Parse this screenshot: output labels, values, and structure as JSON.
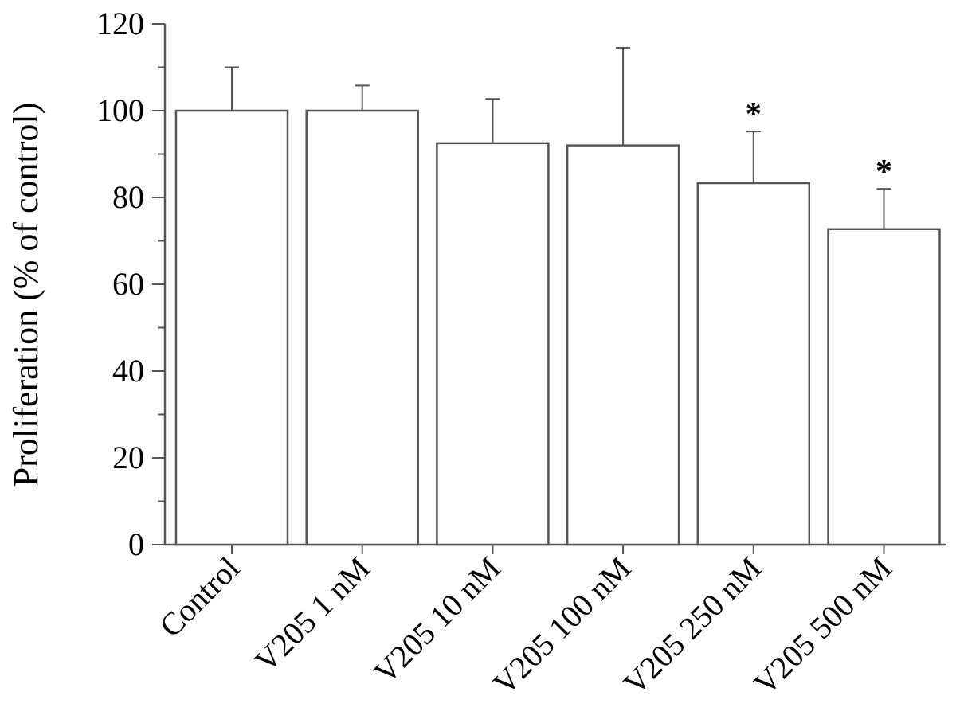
{
  "chart_data": {
    "type": "bar",
    "title": "",
    "xlabel": "",
    "ylabel": "Proliferation (% of control)",
    "ylim": [
      0,
      120
    ],
    "yticks": [
      0,
      20,
      40,
      60,
      80,
      100,
      120
    ],
    "yticks_labels": [
      "0",
      "20",
      "40",
      "60",
      "80",
      "100",
      "120"
    ],
    "minor_tick_step": 10,
    "grid": false,
    "legend": "none",
    "categories": [
      "Control",
      "V205 1 nM",
      "V205 10 nM",
      "V205 100 nM",
      "V205 250 nM",
      "V205 500 nM"
    ],
    "values": [
      100,
      100,
      92.5,
      92,
      83.3,
      72.7
    ],
    "error_upper": [
      10,
      5.8,
      10.2,
      22.5,
      11.9,
      9.3
    ],
    "significance": [
      "",
      "",
      "",
      "",
      "*",
      "*"
    ],
    "colors": {
      "bar_fill": "#ffffff",
      "bar_edge": "#555555",
      "axis": "#555555",
      "text": "#000000"
    }
  }
}
